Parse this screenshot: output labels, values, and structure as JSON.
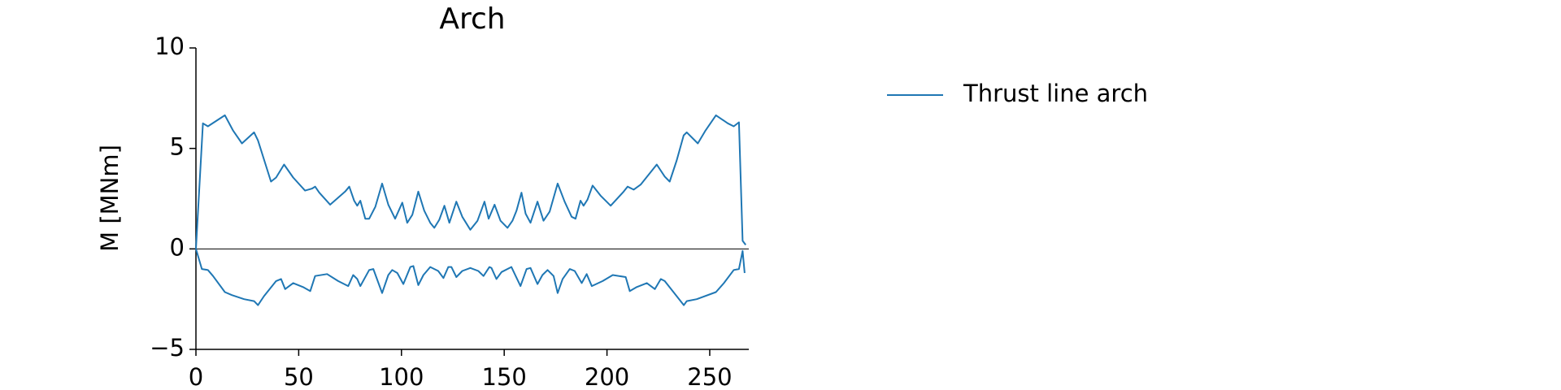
{
  "chart_data": {
    "type": "line",
    "title": "Arch",
    "ylabel": "M [MNm]",
    "x": [
      0,
      3.4,
      5.8,
      14.1,
      18,
      22.4,
      28.3,
      30.2,
      36.5,
      39,
      42.9,
      47.3,
      53.1,
      56.5,
      58,
      60,
      65.3,
      72.6,
      74.6,
      77,
      78.5,
      80,
      82.4,
      84.3,
      87.3,
      90.6,
      93.6,
      96.9,
      100.4,
      102.8,
      105.3,
      108.2,
      111.1,
      114,
      116,
      118.4,
      120.9,
      123.3,
      126.7,
      129.6,
      133.5,
      137,
      140.4,
      142.4,
      145.3,
      148.2,
      151.6,
      154,
      156,
      158.4,
      160.4,
      162.8,
      166.2,
      169.1,
      172.1,
      176,
      179.4,
      182.8,
      184.7,
      187.1,
      188.6,
      190.5,
      193,
      196.9,
      201.8,
      208.1,
      210,
      213,
      216.4,
      224.2,
      228.1,
      230.5,
      233.9,
      237.3,
      238.8,
      244.2,
      248,
      253,
      258.8,
      261.7,
      264.2,
      266,
      267.5,
      null,
      0,
      2.9,
      5.8,
      8.3,
      14.1,
      17.5,
      23.4,
      28.3,
      30.2,
      33.1,
      39,
      41.4,
      43.4,
      47.3,
      52.1,
      55.6,
      58,
      63.8,
      69.2,
      74.1,
      76.5,
      78.5,
      80,
      84.3,
      86.3,
      90.6,
      93.6,
      95.5,
      98,
      100.9,
      104.3,
      105.8,
      108.2,
      110.7,
      114,
      117.9,
      120.4,
      122.8,
      124.3,
      126.7,
      129.6,
      133.5,
      137.4,
      139.9,
      142.8,
      143.8,
      146.2,
      148.7,
      153.5,
      157.9,
      160.9,
      162.8,
      166.2,
      168.6,
      171.1,
      174,
      176,
      178.4,
      181.9,
      184.3,
      187.7,
      190.1,
      192.6,
      197.9,
      202.8,
      209.1,
      211.1,
      214.5,
      219.4,
      223.3,
      226.2,
      228.1,
      237.4,
      238.8,
      243.7,
      253,
      256.9,
      261.7,
      264.2,
      266,
      267
    ],
    "series": [
      {
        "name": "Thrust line arch",
        "color": "#1f77b4",
        "values": [
          0,
          6.25,
          6.1,
          6.65,
          5.9,
          5.25,
          5.8,
          5.4,
          3.35,
          3.55,
          4.2,
          3.55,
          2.9,
          3.0,
          3.1,
          2.8,
          2.2,
          2.85,
          3.1,
          2.4,
          2.15,
          2.4,
          1.5,
          1.5,
          2.1,
          3.25,
          2.2,
          1.5,
          2.3,
          1.3,
          1.7,
          2.85,
          1.9,
          1.3,
          1.05,
          1.45,
          2.15,
          1.3,
          2.35,
          1.6,
          0.95,
          1.4,
          2.35,
          1.5,
          2.2,
          1.4,
          1.05,
          1.4,
          1.9,
          2.8,
          1.75,
          1.3,
          2.35,
          1.4,
          1.85,
          3.25,
          2.35,
          1.6,
          1.5,
          2.4,
          2.15,
          2.45,
          3.15,
          2.65,
          2.15,
          2.85,
          3.1,
          2.95,
          3.2,
          4.2,
          3.6,
          3.35,
          4.4,
          5.65,
          5.8,
          5.25,
          5.9,
          6.65,
          6.25,
          6.1,
          6.3,
          0.4,
          0.2,
          null,
          0,
          -1,
          -1.05,
          -1.35,
          -2.15,
          -2.3,
          -2.5,
          -2.6,
          -2.8,
          -2.35,
          -1.6,
          -1.5,
          -2,
          -1.7,
          -1.9,
          -2.1,
          -1.35,
          -1.25,
          -1.6,
          -1.85,
          -1.3,
          -1.5,
          -1.85,
          -1.05,
          -1,
          -2.2,
          -1.3,
          -1.05,
          -1.2,
          -1.75,
          -0.9,
          -0.85,
          -1.8,
          -1.3,
          -0.9,
          -1.1,
          -1.45,
          -0.9,
          -0.9,
          -1.4,
          -1.1,
          -0.95,
          -1.1,
          -1.35,
          -0.9,
          -0.95,
          -1.5,
          -1.15,
          -0.9,
          -1.85,
          -1,
          -0.95,
          -1.75,
          -1.3,
          -1.05,
          -1.35,
          -2.2,
          -1.5,
          -1,
          -1.1,
          -1.7,
          -1.25,
          -1.85,
          -1.6,
          -1.3,
          -1.4,
          -2.1,
          -1.9,
          -1.7,
          -2,
          -1.5,
          -1.6,
          -2.8,
          -2.6,
          -2.5,
          -2.15,
          -1.7,
          -1.05,
          -1,
          -0.1,
          -1.2
        ]
      }
    ],
    "hline": 0,
    "xlim": [
      0,
      269
    ],
    "xticks": [
      0,
      50,
      100,
      150,
      200,
      250
    ],
    "ylim": [
      -5,
      10
    ],
    "yticks": [
      {
        "value": -5,
        "label": "−5"
      },
      0,
      5,
      10
    ],
    "legend": "outside-right"
  }
}
